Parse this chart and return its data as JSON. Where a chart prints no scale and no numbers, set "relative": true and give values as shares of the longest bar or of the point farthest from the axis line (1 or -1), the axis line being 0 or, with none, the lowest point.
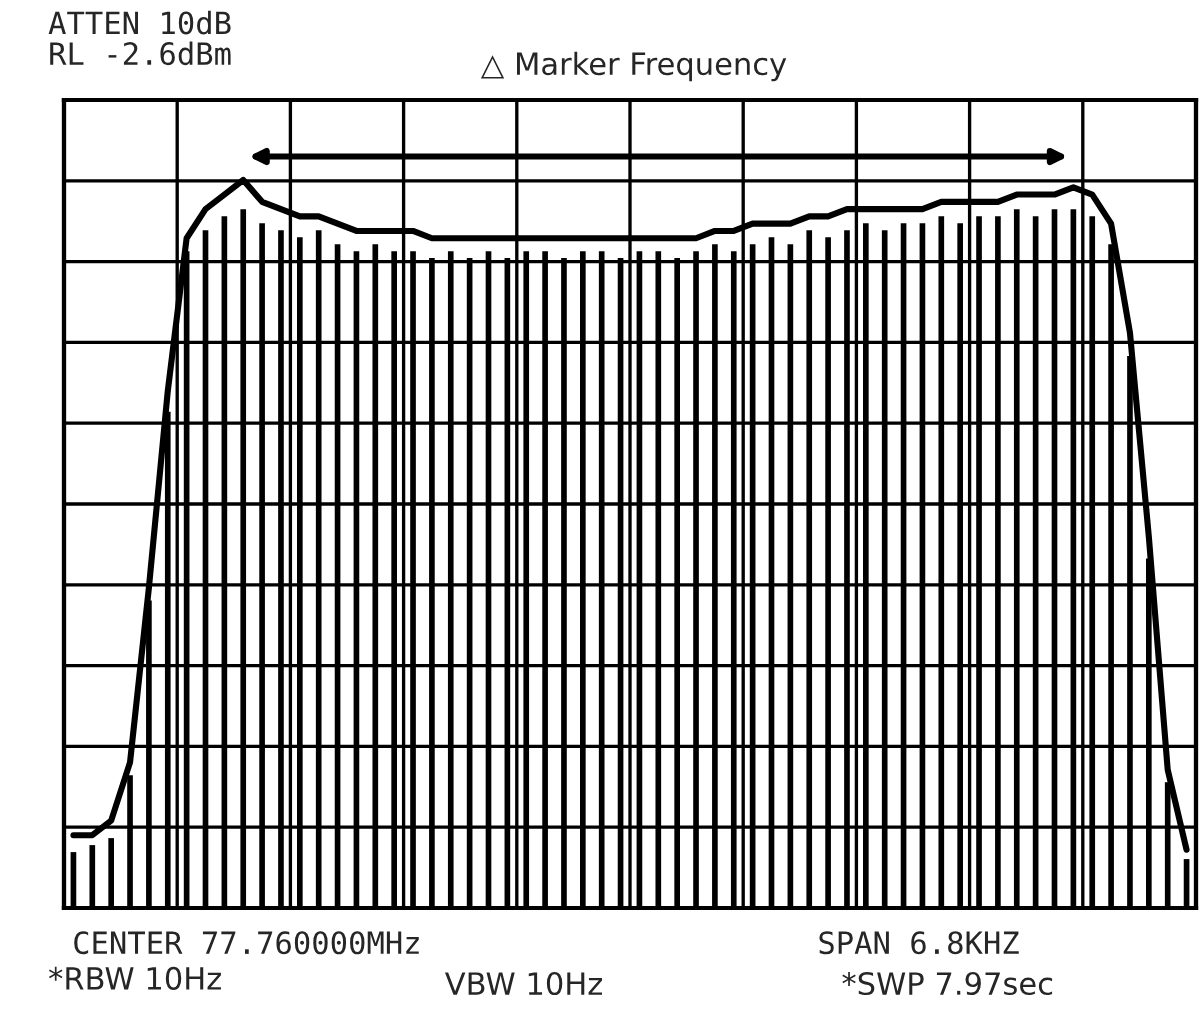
{
  "chart_data": [
    {
      "type": "bar",
      "relative": true,
      "grid": true,
      "tick_labels": false,
      "categories": [
        null,
        null,
        null,
        null,
        null,
        null,
        null,
        null,
        null,
        null,
        null,
        null,
        null,
        null,
        null,
        null,
        null,
        null,
        null,
        null,
        null,
        null,
        null,
        null,
        null,
        null,
        null,
        null,
        null,
        null,
        null,
        null,
        null,
        null,
        null,
        null,
        null,
        null,
        null,
        null,
        null,
        null,
        null,
        null,
        null,
        null,
        null,
        null,
        null,
        null,
        null,
        null,
        null,
        null,
        null,
        null,
        null,
        null,
        null,
        null
      ],
      "series": [
        {
          "color": "#000000",
          "values": [
            0.08,
            0.09,
            0.1,
            0.19,
            0.44,
            0.71,
            0.94,
            0.97,
            0.99,
            1.0,
            0.98,
            0.97,
            0.96,
            0.97,
            0.95,
            0.94,
            0.95,
            0.94,
            0.94,
            0.93,
            0.94,
            0.93,
            0.94,
            0.93,
            0.94,
            0.94,
            0.93,
            0.94,
            0.94,
            0.93,
            0.94,
            0.94,
            0.93,
            0.94,
            0.95,
            0.94,
            0.95,
            0.96,
            0.95,
            0.97,
            0.96,
            0.97,
            0.98,
            0.97,
            0.98,
            0.98,
            0.99,
            0.98,
            0.99,
            0.99,
            1.0,
            0.99,
            1.0,
            1.0,
            0.99,
            0.95,
            0.79,
            0.5,
            0.18,
            0.07
          ]
        }
      ],
      "annotations": [
        "ATTEN 10dB",
        "RL -2.6dBm",
        "△ Marker Frequency",
        "CENTER 77.760000MHz",
        "SPAN 6.8KHZ",
        "*RBW 10Hz",
        "VBW 10Hz",
        "*SWP 7.97sec"
      ]
    },
    {
      "type": "line",
      "relative": true,
      "tick_labels": false,
      "categories": [
        null,
        null,
        null,
        null,
        null,
        null,
        null,
        null,
        null,
        null,
        null,
        null,
        null,
        null,
        null,
        null,
        null,
        null,
        null,
        null,
        null,
        null,
        null,
        null,
        null,
        null,
        null,
        null,
        null,
        null,
        null,
        null,
        null,
        null,
        null,
        null,
        null,
        null,
        null,
        null,
        null,
        null,
        null,
        null,
        null,
        null,
        null,
        null,
        null,
        null,
        null,
        null,
        null,
        null,
        null,
        null,
        null,
        null,
        null,
        null
      ],
      "series": [
        {
          "color": "#000000",
          "values": [
            0.1,
            0.1,
            0.12,
            0.2,
            0.44,
            0.71,
            0.92,
            0.96,
            0.98,
            1.0,
            0.97,
            0.96,
            0.95,
            0.95,
            0.94,
            0.93,
            0.93,
            0.93,
            0.93,
            0.92,
            0.92,
            0.92,
            0.92,
            0.92,
            0.92,
            0.92,
            0.92,
            0.92,
            0.92,
            0.92,
            0.92,
            0.92,
            0.92,
            0.92,
            0.93,
            0.93,
            0.94,
            0.94,
            0.94,
            0.95,
            0.95,
            0.96,
            0.96,
            0.96,
            0.96,
            0.96,
            0.97,
            0.97,
            0.97,
            0.97,
            0.98,
            0.98,
            0.98,
            0.99,
            0.98,
            0.94,
            0.79,
            0.51,
            0.19,
            0.08
          ]
        }
      ]
    }
  ]
}
